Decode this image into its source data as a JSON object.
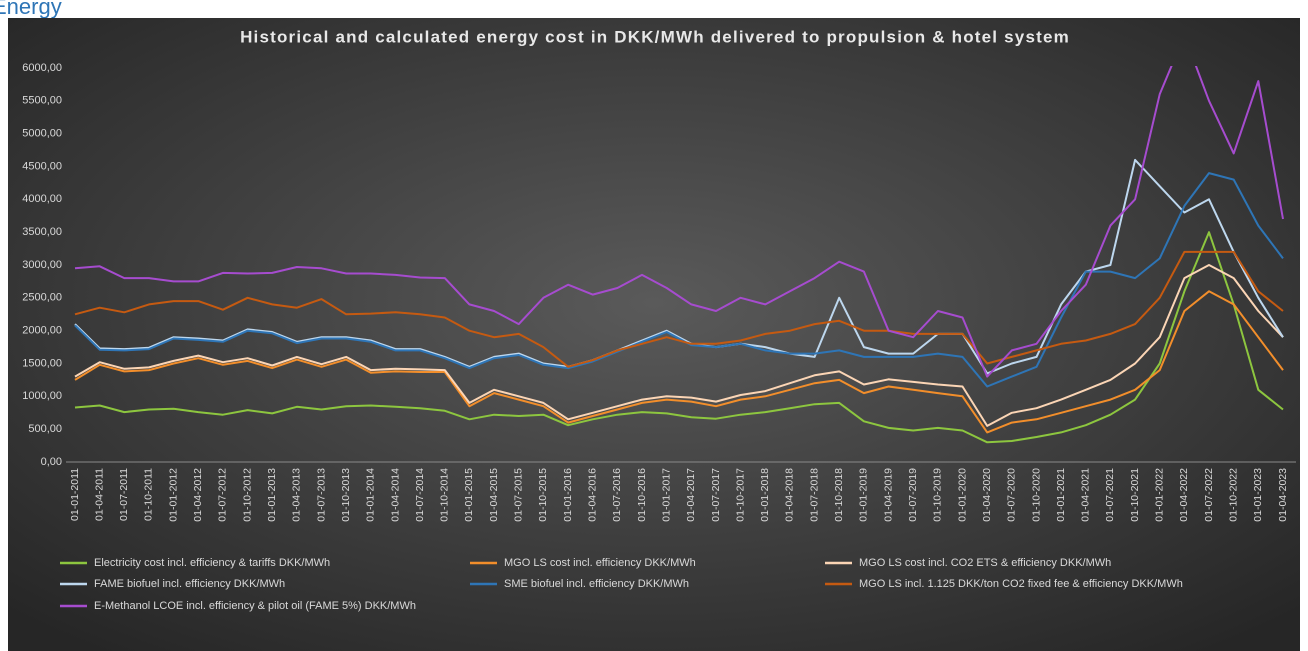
{
  "header": {
    "title": "Energy"
  },
  "chart_data": {
    "type": "line",
    "title": "Historical and calculated energy cost in DKK/MWh delivered to propulsion & hotel system",
    "categories": [
      "01-01-2011",
      "01-04-2011",
      "01-07-2011",
      "01-10-2011",
      "01-01-2012",
      "01-04-2012",
      "01-07-2012",
      "01-10-2012",
      "01-01-2013",
      "01-04-2013",
      "01-07-2013",
      "01-10-2013",
      "01-01-2014",
      "01-04-2014",
      "01-07-2014",
      "01-10-2014",
      "01-01-2015",
      "01-04-2015",
      "01-07-2015",
      "01-10-2015",
      "01-01-2016",
      "01-04-2016",
      "01-07-2016",
      "01-10-2016",
      "01-01-2017",
      "01-04-2017",
      "01-07-2017",
      "01-10-2017",
      "01-01-2018",
      "01-04-2018",
      "01-07-2018",
      "01-10-2018",
      "01-01-2019",
      "01-04-2019",
      "01-07-2019",
      "01-10-2019",
      "01-01-2020",
      "01-04-2020",
      "01-07-2020",
      "01-10-2020",
      "01-01-2021",
      "01-04-2021",
      "01-07-2021",
      "01-10-2021",
      "01-01-2022",
      "01-04-2022",
      "01-07-2022",
      "01-10-2022",
      "01-01-2023",
      "01-04-2023"
    ],
    "series": [
      {
        "name": "Electricity cost incl. efficiency & tariffs DKK/MWh",
        "color": "#8dc63f",
        "values": [
          830,
          860,
          760,
          800,
          810,
          760,
          720,
          790,
          740,
          840,
          800,
          850,
          860,
          840,
          820,
          780,
          650,
          720,
          700,
          720,
          560,
          650,
          720,
          760,
          740,
          680,
          660,
          720,
          760,
          820,
          880,
          900,
          620,
          520,
          480,
          520,
          480,
          300,
          320,
          380,
          450,
          560,
          720,
          950,
          1500,
          2600,
          3500,
          2400,
          1100,
          800
        ]
      },
      {
        "name": "MGO LS cost incl. efficiency DKK/MWh",
        "color": "#f28e2b",
        "values": [
          1250,
          1480,
          1380,
          1400,
          1500,
          1580,
          1480,
          1540,
          1430,
          1560,
          1450,
          1560,
          1360,
          1380,
          1370,
          1370,
          850,
          1050,
          950,
          850,
          600,
          700,
          800,
          900,
          950,
          920,
          850,
          950,
          1000,
          1100,
          1200,
          1250,
          1050,
          1150,
          1100,
          1050,
          1000,
          450,
          600,
          650,
          750,
          850,
          950,
          1100,
          1400,
          2300,
          2600,
          2400,
          1900,
          1400
        ]
      },
      {
        "name": "MGO LS cost incl. CO2 ETS & efficiency DKK/MWh",
        "color": "#fbd5b5",
        "values": [
          1300,
          1520,
          1420,
          1440,
          1540,
          1620,
          1520,
          1580,
          1470,
          1600,
          1490,
          1600,
          1400,
          1420,
          1410,
          1400,
          900,
          1100,
          1000,
          900,
          650,
          750,
          850,
          950,
          1000,
          980,
          920,
          1020,
          1080,
          1200,
          1320,
          1380,
          1180,
          1260,
          1220,
          1180,
          1150,
          550,
          750,
          820,
          950,
          1100,
          1250,
          1500,
          1900,
          2800,
          3000,
          2800,
          2300,
          1900
        ]
      },
      {
        "name": "FAME biofuel incl. efficiency DKK/MWh",
        "color": "#bdd7ee",
        "values": [
          2100,
          1730,
          1720,
          1740,
          1900,
          1880,
          1850,
          2020,
          1980,
          1830,
          1900,
          1900,
          1850,
          1720,
          1720,
          1600,
          1450,
          1600,
          1650,
          1500,
          1450,
          1550,
          1700,
          1850,
          2000,
          1800,
          1750,
          1800,
          1750,
          1650,
          1600,
          2500,
          1750,
          1650,
          1650,
          1950,
          1950,
          1350,
          1500,
          1600,
          2400,
          2900,
          3000,
          4600,
          4200,
          3800,
          4000,
          3200,
          2500,
          1900
        ]
      },
      {
        "name": "SME biofuel incl. efficiency DKK/MWh",
        "color": "#2e75b6",
        "values": [
          2080,
          1710,
          1700,
          1720,
          1880,
          1860,
          1830,
          2000,
          1960,
          1810,
          1880,
          1880,
          1830,
          1700,
          1700,
          1580,
          1430,
          1580,
          1630,
          1480,
          1430,
          1530,
          1680,
          1830,
          1980,
          1780,
          1750,
          1800,
          1700,
          1650,
          1650,
          1700,
          1600,
          1600,
          1600,
          1650,
          1600,
          1150,
          1300,
          1450,
          2200,
          2900,
          2900,
          2800,
          3100,
          3900,
          4400,
          4300,
          3600,
          3100
        ]
      },
      {
        "name": "MGO LS incl. 1.125 DKK/ton CO2 fixed fee & efficiency  DKK/MWh",
        "color": "#c55a11",
        "values": [
          2250,
          2350,
          2280,
          2400,
          2450,
          2450,
          2320,
          2500,
          2400,
          2350,
          2480,
          2250,
          2260,
          2280,
          2250,
          2200,
          2000,
          1900,
          1950,
          1750,
          1450,
          1550,
          1700,
          1800,
          1900,
          1800,
          1800,
          1850,
          1950,
          2000,
          2100,
          2150,
          2000,
          2000,
          1950,
          1950,
          1950,
          1500,
          1600,
          1700,
          1800,
          1850,
          1950,
          2100,
          2500,
          3200,
          3200,
          3200,
          2600,
          2300
        ]
      },
      {
        "name": "E-Methanol LCOE incl. efficiency & pilot oil (FAME 5%) DKK/MWh",
        "color": "#a64ccf",
        "values": [
          2950,
          2980,
          2800,
          2800,
          2750,
          2750,
          2880,
          2870,
          2880,
          2970,
          2950,
          2870,
          2870,
          2850,
          2810,
          2800,
          2400,
          2300,
          2100,
          2500,
          2700,
          2550,
          2650,
          2850,
          2650,
          2400,
          2300,
          2500,
          2400,
          2600,
          2800,
          3050,
          2900,
          2000,
          1900,
          2300,
          2200,
          1300,
          1700,
          1800,
          2300,
          2700,
          3600,
          4000,
          5600,
          6500,
          5500,
          4700,
          5800,
          3700
        ]
      }
    ],
    "ylim": [
      0,
      6000
    ],
    "yticks": [
      {
        "value": 0,
        "label": "0,00"
      },
      {
        "value": 500,
        "label": "500,00"
      },
      {
        "value": 1000,
        "label": "1000,00"
      },
      {
        "value": 1500,
        "label": "1500,00"
      },
      {
        "value": 2000,
        "label": "2000,00"
      },
      {
        "value": 2500,
        "label": "2500,00"
      },
      {
        "value": 3000,
        "label": "3000,00"
      },
      {
        "value": 3500,
        "label": "3500,00"
      },
      {
        "value": 4000,
        "label": "4000,00"
      },
      {
        "value": 4500,
        "label": "4500,00"
      },
      {
        "value": 5000,
        "label": "5000,00"
      },
      {
        "value": 5500,
        "label": "5500,00"
      },
      {
        "value": 6000,
        "label": "6000,00"
      }
    ],
    "grid": false
  }
}
